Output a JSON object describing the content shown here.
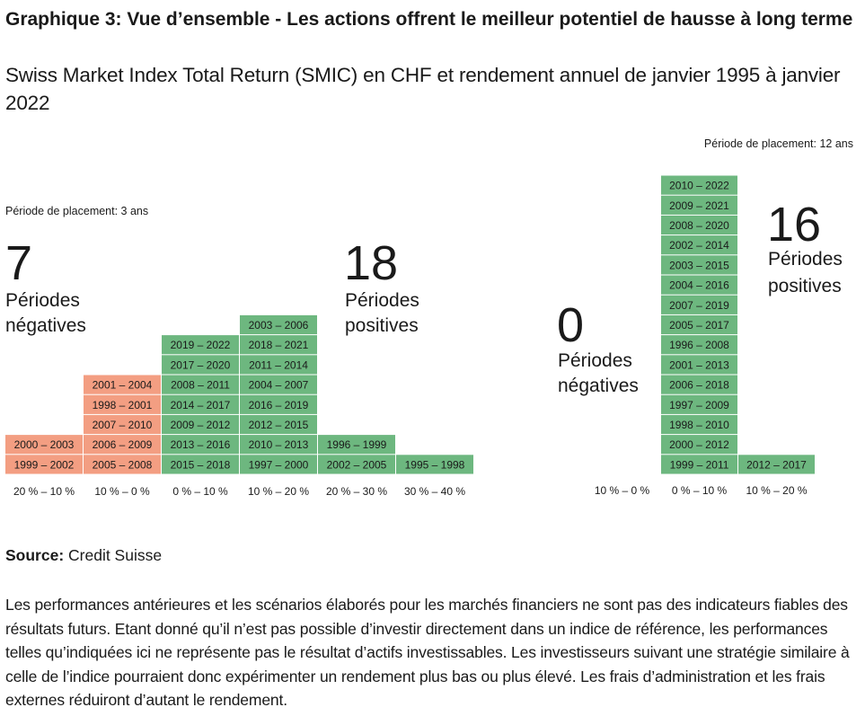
{
  "header": {
    "title": "Graphique 3: Vue d’ensemble -  Les actions offrent le meilleur potentiel de hausse à long terme",
    "subtitle": "Swiss Market Index Total Return (SMIC) en CHF et rendement annuel de janvier 1995 à janvier 2022"
  },
  "colors": {
    "negative": "#f39e82",
    "positive": "#6db77f",
    "text": "#1a1a1a"
  },
  "chart_data": [
    {
      "type": "table",
      "period_label": "Période de placement: 3 ans",
      "negative_count": "7",
      "negative_word_1": "Périodes",
      "negative_word_2": "négatives",
      "positive_count": "18",
      "positive_word_1": "Périodes",
      "positive_word_2": "positives",
      "categories": [
        "20 % – 10 %",
        "10 % – 0 %",
        "0 % – 10 %",
        "10 % – 20 %",
        "20 % – 30 %",
        "30 % – 40 %"
      ],
      "columns": [
        {
          "sign": "negative",
          "items": [
            "1999 – 2002",
            "2000 – 2003"
          ]
        },
        {
          "sign": "negative",
          "items": [
            "2005 – 2008",
            "2006 – 2009",
            "2007 – 2010",
            "1998 – 2001",
            "2001 – 2004"
          ]
        },
        {
          "sign": "positive",
          "items": [
            "2015 – 2018",
            "2013 – 2016",
            "2009 – 2012",
            "2014 – 2017",
            "2008 – 2011",
            "2017 – 2020",
            "2019 – 2022"
          ]
        },
        {
          "sign": "positive",
          "items": [
            "1997 – 2000",
            "2010 – 2013",
            "2012 – 2015",
            "2016 – 2019",
            "2004 – 2007",
            "2011 – 2014",
            "2018 – 2021",
            "2003 – 2006"
          ]
        },
        {
          "sign": "positive",
          "items": [
            "2002 – 2005",
            "1996 – 1999"
          ]
        },
        {
          "sign": "positive",
          "items": [
            "1995 – 1998"
          ]
        }
      ]
    },
    {
      "type": "table",
      "period_label": "Période de placement: 12 ans",
      "negative_count": "0",
      "negative_word_1": "Périodes",
      "negative_word_2": "négatives",
      "positive_count": "16",
      "positive_word_1": "Périodes",
      "positive_word_2": "positives",
      "categories": [
        "10 % – 0 %",
        "0 % – 10 %",
        "10 % – 20 %"
      ],
      "columns": [
        {
          "sign": "negative",
          "items": []
        },
        {
          "sign": "positive",
          "items": [
            "1999 – 2011",
            "2000 – 2012",
            "1998 – 2010",
            "1997 – 2009",
            "2006 – 2018",
            "2001 – 2013",
            "1996 – 2008",
            "2005 – 2017",
            "2007 – 2019",
            "2004 – 2016",
            "2003 – 2015",
            "2002 – 2014",
            "2008 – 2020",
            "2009 – 2021",
            "2010 – 2022"
          ]
        },
        {
          "sign": "positive",
          "items": [
            "2012 – 2017"
          ]
        }
      ]
    }
  ],
  "footer": {
    "source_label": "Source:",
    "source_value": " Credit Suisse",
    "disclaimer": "Les performances antérieures et les scénarios élaborés pour les marchés financiers ne sont pas des indicateurs fiables des résultats futurs. Etant donné qu’il n’est pas possible d’investir directement dans un indice de référence, les performances telles qu’indiquées ici ne représente pas le résultat d’actifs investissables. Les investisseurs suivant une stratégie similaire à celle de l’indice pourraient donc expérimenter un rendement plus bas ou plus élevé. Les frais d’administration et les frais externes réduiront d’autant le rendement."
  }
}
